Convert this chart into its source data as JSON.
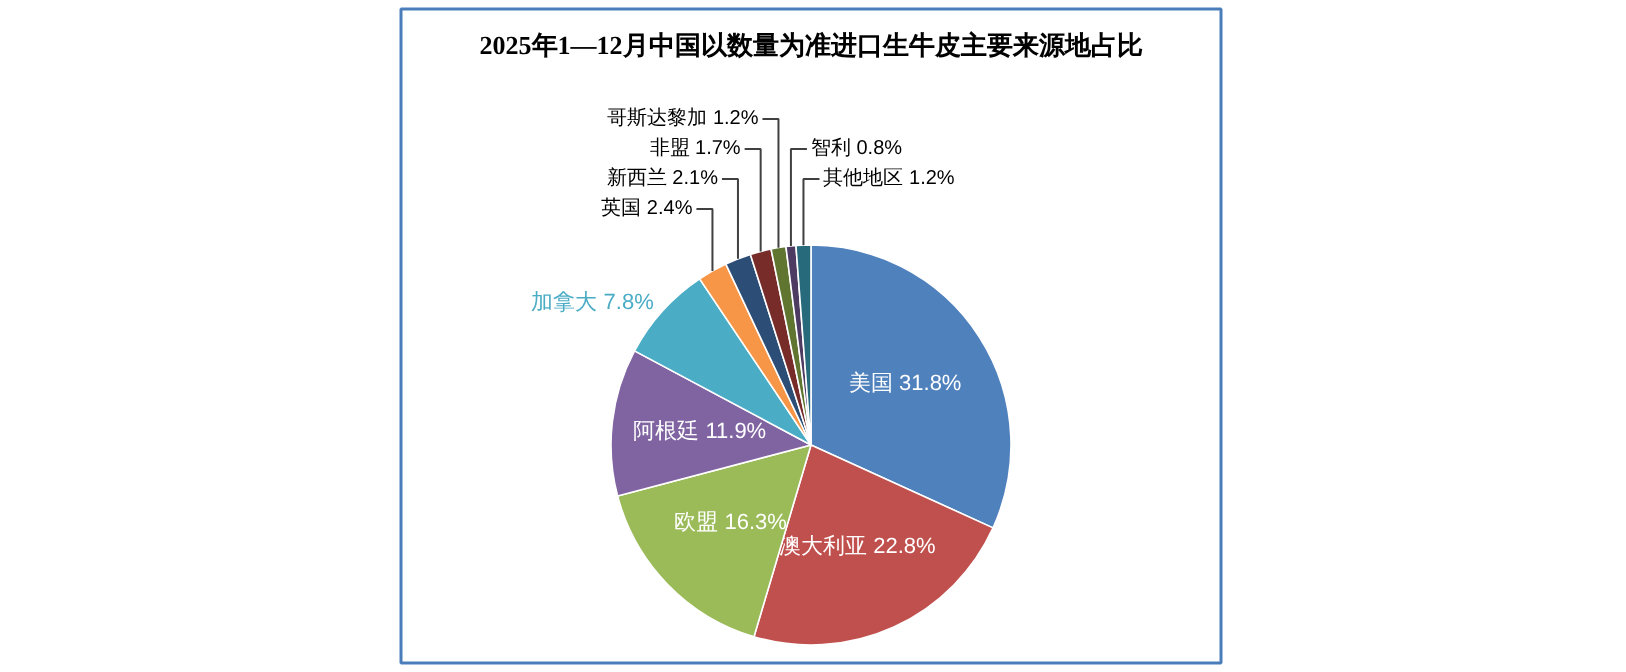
{
  "chart_data": {
    "type": "pie",
    "title": "2025年1—12月中国以数量为准进口生牛皮主要来源地占比",
    "categories": [
      "美国",
      "澳大利亚",
      "欧盟",
      "阿根廷",
      "加拿大",
      "英国",
      "新西兰",
      "非盟",
      "哥斯达黎加",
      "智利",
      "其他地区"
    ],
    "values": [
      31.8,
      22.8,
      16.3,
      11.9,
      7.8,
      2.4,
      2.1,
      1.7,
      1.2,
      0.8,
      1.2
    ],
    "value_labels": [
      "31.8%",
      "22.8%",
      "16.3%",
      "11.9%",
      "7.8%",
      "2.4%",
      "2.1%",
      "1.7%",
      "1.2%",
      "0.8%",
      "1.2%"
    ],
    "colors": [
      "#4f81bd",
      "#c0504d",
      "#9bbb59",
      "#8064a2",
      "#4bacc6",
      "#f79646",
      "#2c4d75",
      "#772c2a",
      "#5f7530",
      "#4d3b62",
      "#276a7c"
    ],
    "legend": false
  }
}
